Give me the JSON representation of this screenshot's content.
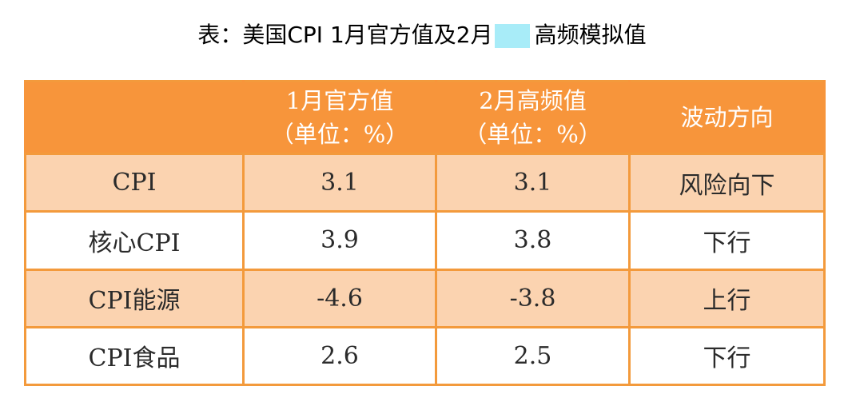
{
  "title": {
    "prefix": "表：美国CPI 1月官方值及2月",
    "suffix": "高频模拟值"
  },
  "table": {
    "headers": [
      {
        "line1": "",
        "line2": ""
      },
      {
        "line1": "1月官方值",
        "line2": "（单位：%）"
      },
      {
        "line1": "2月高频值",
        "line2": "（单位：%）"
      },
      {
        "line1": "波动方向",
        "line2": ""
      }
    ],
    "rows": [
      {
        "label": "CPI",
        "jan": "3.1",
        "feb": "3.1",
        "direction": "风险向下"
      },
      {
        "label": "核心CPI",
        "jan": "3.9",
        "feb": "3.8",
        "direction": "下行"
      },
      {
        "label": "CPI能源",
        "jan": "-4.6",
        "feb": "-3.8",
        "direction": "上行"
      },
      {
        "label": "CPI食品",
        "jan": "2.6",
        "feb": "2.5",
        "direction": "下行"
      }
    ]
  },
  "colors": {
    "header_bg": "#f7953b",
    "shade_row_bg": "#fbd3b0",
    "border": "#f39a3c",
    "mask": "#a8ecf8"
  }
}
